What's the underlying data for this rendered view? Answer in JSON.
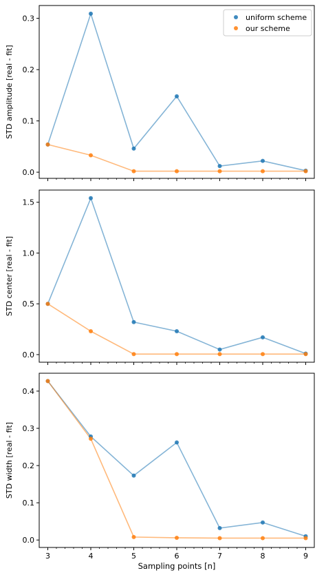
{
  "colors": {
    "uniform": "#1f77b4",
    "ours": "#ff7f0e"
  },
  "xlabel": "Sampling points [n]",
  "legend": {
    "placement": "top-right",
    "entries": [
      "uniform scheme",
      "our scheme"
    ]
  },
  "chart_data": [
    {
      "type": "line",
      "ylabel": "STD amplitude [real - fit]",
      "x": [
        3,
        4,
        5,
        6,
        7,
        8,
        9
      ],
      "xlim": [
        2.8,
        9.2
      ],
      "ylim": [
        -0.012,
        0.325
      ],
      "yticks": [
        0.0,
        0.1,
        0.2,
        0.3
      ],
      "ytick_labels": [
        "0.0",
        "0.1",
        "0.2",
        "0.3"
      ],
      "series": [
        {
          "name": "uniform scheme",
          "values": [
            0.054,
            0.309,
            0.046,
            0.148,
            0.012,
            0.022,
            0.003
          ]
        },
        {
          "name": "our scheme",
          "values": [
            0.054,
            0.033,
            0.002,
            0.002,
            0.002,
            0.002,
            0.002
          ]
        }
      ]
    },
    {
      "type": "line",
      "ylabel": "STD center [real - fit]",
      "x": [
        3,
        4,
        5,
        6,
        7,
        8,
        9
      ],
      "xlim": [
        2.8,
        9.2
      ],
      "ylim": [
        -0.075,
        1.62
      ],
      "yticks": [
        0.0,
        0.5,
        1.0,
        1.5
      ],
      "ytick_labels": [
        "0.0",
        "0.5",
        "1.0",
        "1.5"
      ],
      "series": [
        {
          "name": "uniform scheme",
          "values": [
            0.5,
            1.54,
            0.32,
            0.23,
            0.05,
            0.17,
            0.01
          ]
        },
        {
          "name": "our scheme",
          "values": [
            0.5,
            0.23,
            0.005,
            0.005,
            0.005,
            0.005,
            0.005
          ]
        }
      ]
    },
    {
      "type": "line",
      "ylabel": "STD width [real - fit]",
      "x": [
        3,
        4,
        5,
        6,
        7,
        8,
        9
      ],
      "xlim": [
        2.8,
        9.2
      ],
      "ylim": [
        -0.02,
        0.448
      ],
      "yticks": [
        0.0,
        0.1,
        0.2,
        0.3,
        0.4
      ],
      "ytick_labels": [
        "0.0",
        "0.1",
        "0.2",
        "0.3",
        "0.4"
      ],
      "xtick_labels": [
        "3",
        "4",
        "5",
        "6",
        "7",
        "8",
        "9"
      ],
      "series": [
        {
          "name": "uniform scheme",
          "values": [
            0.427,
            0.278,
            0.173,
            0.262,
            0.032,
            0.047,
            0.01
          ]
        },
        {
          "name": "our scheme",
          "values": [
            0.427,
            0.272,
            0.008,
            0.006,
            0.005,
            0.005,
            0.005
          ]
        }
      ]
    }
  ]
}
